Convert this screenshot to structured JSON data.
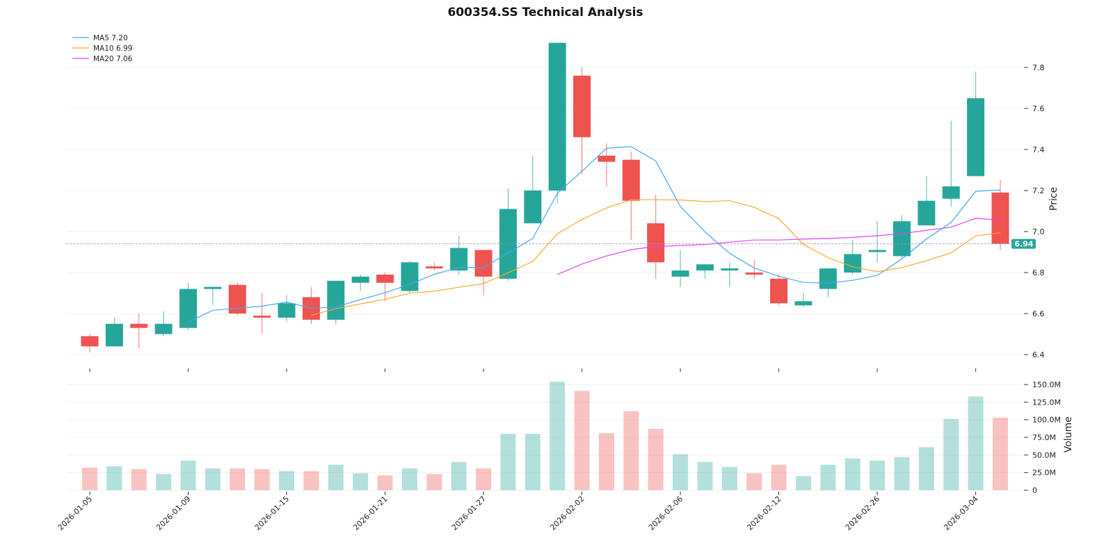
{
  "chart_data": {
    "type": "candlestick",
    "title": "600354.SS Technical Analysis",
    "ylabel": "Price",
    "volume_label": "Volume",
    "ylim": [
      6.35,
      7.95
    ],
    "volume_ylim": [
      0,
      155
    ],
    "grid": true,
    "legend_placement": "top-left",
    "colors": {
      "up": "#26a69a",
      "down": "#ef5350",
      "ma5": "#42a5f5",
      "ma10": "#ffa726",
      "ma20": "#e040fb",
      "grid": "#eef0f6"
    },
    "dates": [
      "2026-01-05",
      "2026-01-06",
      "2026-01-07",
      "2026-01-08",
      "2026-01-09",
      "2026-01-12",
      "2026-01-13",
      "2026-01-14",
      "2026-01-15",
      "2026-01-16",
      "2026-01-19",
      "2026-01-20",
      "2026-01-21",
      "2026-01-22",
      "2026-01-23",
      "2026-01-26",
      "2026-01-27",
      "2026-01-28",
      "2026-01-29",
      "2026-01-30",
      "2026-02-02",
      "2026-02-03",
      "2026-02-04",
      "2026-02-05",
      "2026-02-06",
      "2026-02-09",
      "2026-02-10",
      "2026-02-11",
      "2026-02-12",
      "2026-02-13",
      "2026-02-24",
      "2026-02-25",
      "2026-02-26",
      "2026-02-27",
      "2026-03-02",
      "2026-03-03",
      "2026-03-04",
      "2026-03-05"
    ],
    "open": [
      6.49,
      6.44,
      6.55,
      6.5,
      6.53,
      6.72,
      6.74,
      6.59,
      6.58,
      6.68,
      6.57,
      6.75,
      6.79,
      6.71,
      6.83,
      6.81,
      6.91,
      6.77,
      7.04,
      7.2,
      7.76,
      7.37,
      7.35,
      7.04,
      6.78,
      6.81,
      6.81,
      6.8,
      6.77,
      6.64,
      6.72,
      6.8,
      6.9,
      6.88,
      7.03,
      7.16,
      7.27,
      7.19
    ],
    "high": [
      6.5,
      6.58,
      6.6,
      6.61,
      6.75,
      6.73,
      6.75,
      6.7,
      6.69,
      6.73,
      6.76,
      6.79,
      6.8,
      6.86,
      6.85,
      6.98,
      6.91,
      7.21,
      7.37,
      7.92,
      7.8,
      7.43,
      7.39,
      7.18,
      6.91,
      6.84,
      6.85,
      6.86,
      6.79,
      6.7,
      6.82,
      6.96,
      7.05,
      7.08,
      7.27,
      7.54,
      7.78,
      7.25
    ],
    "low": [
      6.41,
      6.44,
      6.43,
      6.49,
      6.52,
      6.64,
      6.59,
      6.5,
      6.56,
      6.55,
      6.55,
      6.71,
      6.66,
      6.7,
      6.81,
      6.79,
      6.69,
      6.76,
      7.04,
      7.14,
      7.28,
      7.22,
      6.96,
      6.77,
      6.73,
      6.77,
      6.73,
      6.77,
      6.64,
      6.63,
      6.68,
      6.79,
      6.85,
      6.87,
      7.03,
      7.12,
      7.27,
      6.91
    ],
    "close": [
      6.44,
      6.55,
      6.53,
      6.55,
      6.72,
      6.73,
      6.6,
      6.58,
      6.65,
      6.57,
      6.76,
      6.78,
      6.75,
      6.85,
      6.82,
      6.92,
      6.78,
      7.11,
      7.2,
      7.92,
      7.46,
      7.34,
      7.15,
      6.85,
      6.81,
      6.84,
      6.82,
      6.79,
      6.65,
      6.66,
      6.82,
      6.89,
      6.91,
      7.05,
      7.15,
      7.22,
      7.65,
      6.94
    ],
    "volume_millions": [
      32,
      34,
      30,
      23,
      42,
      31,
      31,
      30,
      27,
      27,
      36,
      24,
      21,
      31,
      23,
      40,
      31,
      80,
      80,
      154,
      141,
      81,
      112,
      87,
      51,
      40,
      33,
      24,
      36,
      20,
      36,
      45,
      42,
      47,
      61,
      101,
      133,
      103
    ],
    "x_tick_labels": [
      "2026-01-05",
      "2026-01-09",
      "2026-01-15",
      "2026-01-21",
      "2026-01-27",
      "2026-02-02",
      "2026-02-06",
      "2026-02-12",
      "2026-02-26",
      "2026-03-04"
    ],
    "x_tick_indices": [
      0,
      4,
      8,
      12,
      16,
      20,
      24,
      28,
      32,
      36
    ],
    "y_ticks": [
      6.4,
      6.6,
      6.8,
      7.0,
      7.2,
      7.4,
      7.6,
      7.8
    ],
    "y_tick_labels": [
      "6.4",
      "6.6",
      "6.8",
      "7.0",
      "7.2",
      "7.4",
      "7.6",
      "7.8"
    ],
    "volume_ticks": [
      0,
      25,
      50,
      75,
      100,
      125,
      150
    ],
    "volume_tick_labels": [
      "0",
      "25.0M",
      "50.0M",
      "75.0M",
      "100.0M",
      "125.0M",
      "150.0M"
    ],
    "moving_averages": [
      {
        "name": "MA5",
        "period": 5,
        "legend": "MA5 7.20"
      },
      {
        "name": "MA10",
        "period": 10,
        "legend": "MA10 6.99"
      },
      {
        "name": "MA20",
        "period": 20,
        "legend": "MA20 7.06"
      }
    ],
    "last_price": 6.94,
    "last_price_label": "6.94"
  }
}
